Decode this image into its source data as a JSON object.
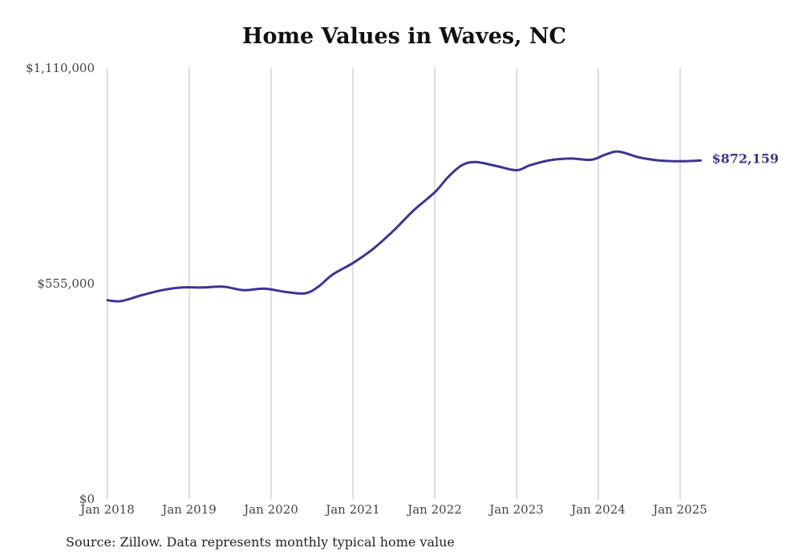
{
  "chart_data": {
    "type": "line",
    "title": "Home Values in Waves, NC",
    "source": "Source: Zillow. Data represents monthly typical home value",
    "ylim": [
      0,
      1110000
    ],
    "y_ticks": [
      {
        "value": 0,
        "label": "$0"
      },
      {
        "value": 555000,
        "label": "$555,000"
      },
      {
        "value": 1110000,
        "label": "$1,110,000"
      }
    ],
    "x_ticks": [
      {
        "value": "2018-01",
        "label": "Jan 2018"
      },
      {
        "value": "2019-01",
        "label": "Jan 2019"
      },
      {
        "value": "2020-01",
        "label": "Jan 2020"
      },
      {
        "value": "2021-01",
        "label": "Jan 2021"
      },
      {
        "value": "2022-01",
        "label": "Jan 2022"
      },
      {
        "value": "2023-01",
        "label": "Jan 2023"
      },
      {
        "value": "2024-01",
        "label": "Jan 2024"
      },
      {
        "value": "2025-01",
        "label": "Jan 2025"
      }
    ],
    "grid": "vertical",
    "line_color": "#3b3594",
    "end_label": "$872,159",
    "series": [
      {
        "x": [
          "2018-01",
          "2018-03",
          "2018-06",
          "2018-09",
          "2018-12",
          "2019-03",
          "2019-06",
          "2019-09",
          "2019-12",
          "2020-03",
          "2020-06",
          "2020-08",
          "2020-10",
          "2021-01",
          "2021-04",
          "2021-07",
          "2021-10",
          "2022-01",
          "2022-03",
          "2022-05",
          "2022-07",
          "2022-10",
          "2023-01",
          "2023-03",
          "2023-06",
          "2023-09",
          "2023-12",
          "2024-02",
          "2024-04",
          "2024-07",
          "2024-10",
          "2025-01",
          "2025-04"
        ],
        "values": [
          512000,
          510000,
          525000,
          538000,
          545000,
          545000,
          547000,
          538000,
          542000,
          534000,
          530000,
          548000,
          578000,
          608000,
          645000,
          692000,
          745000,
          790000,
          830000,
          860000,
          868000,
          858000,
          847000,
          860000,
          873000,
          877000,
          874000,
          887000,
          895000,
          880000,
          872000,
          870000,
          872159
        ]
      }
    ]
  }
}
